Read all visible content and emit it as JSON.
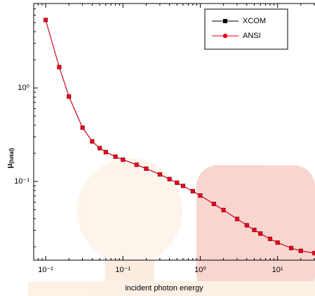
{
  "chart_data": {
    "type": "line",
    "log_x": true,
    "log_y": true,
    "xlabel": "incident photon energy",
    "ylabel": "μ",
    "ylabel_sub": "(total)",
    "x": [
      0.01,
      0.015,
      0.02,
      0.03,
      0.04,
      0.05,
      0.06,
      0.08,
      0.1,
      0.15,
      0.2,
      0.3,
      0.4,
      0.5,
      0.6,
      0.8,
      1,
      1.5,
      2,
      3,
      4,
      5,
      6,
      8,
      10,
      15,
      20,
      30
    ],
    "series": [
      {
        "name": "XCOM",
        "color": "#000000",
        "marker": "square",
        "values": [
          5.33,
          1.67,
          0.81,
          0.376,
          0.268,
          0.227,
          0.206,
          0.184,
          0.171,
          0.151,
          0.137,
          0.119,
          0.106,
          0.0969,
          0.0896,
          0.0787,
          0.0707,
          0.0575,
          0.0494,
          0.0397,
          0.034,
          0.0303,
          0.0277,
          0.0243,
          0.0222,
          0.0194,
          0.0181,
          0.0171
        ]
      },
      {
        "name": "ANSI",
        "color": "#e3001b",
        "marker": "circle",
        "values": [
          5.33,
          1.67,
          0.81,
          0.376,
          0.268,
          0.227,
          0.206,
          0.184,
          0.171,
          0.151,
          0.137,
          0.119,
          0.106,
          0.0969,
          0.0896,
          0.0787,
          0.0707,
          0.0575,
          0.0494,
          0.0397,
          0.034,
          0.0303,
          0.0277,
          0.0243,
          0.0222,
          0.0194,
          0.0181,
          0.0171
        ]
      }
    ],
    "xlim": [
      0.007,
      30.5
    ],
    "ylim": [
      0.0144,
      8
    ],
    "xticks": [
      {
        "value": 0.01,
        "label": "10⁻²"
      },
      {
        "value": 0.1,
        "label": "10⁻¹"
      },
      {
        "value": 1,
        "label": "10⁰"
      },
      {
        "value": 10,
        "label": "10¹"
      }
    ],
    "yticks": [
      {
        "value": 0.1,
        "label": "10⁻¹"
      },
      {
        "value": 1,
        "label": "10⁰"
      }
    ],
    "legend": "top-right"
  }
}
